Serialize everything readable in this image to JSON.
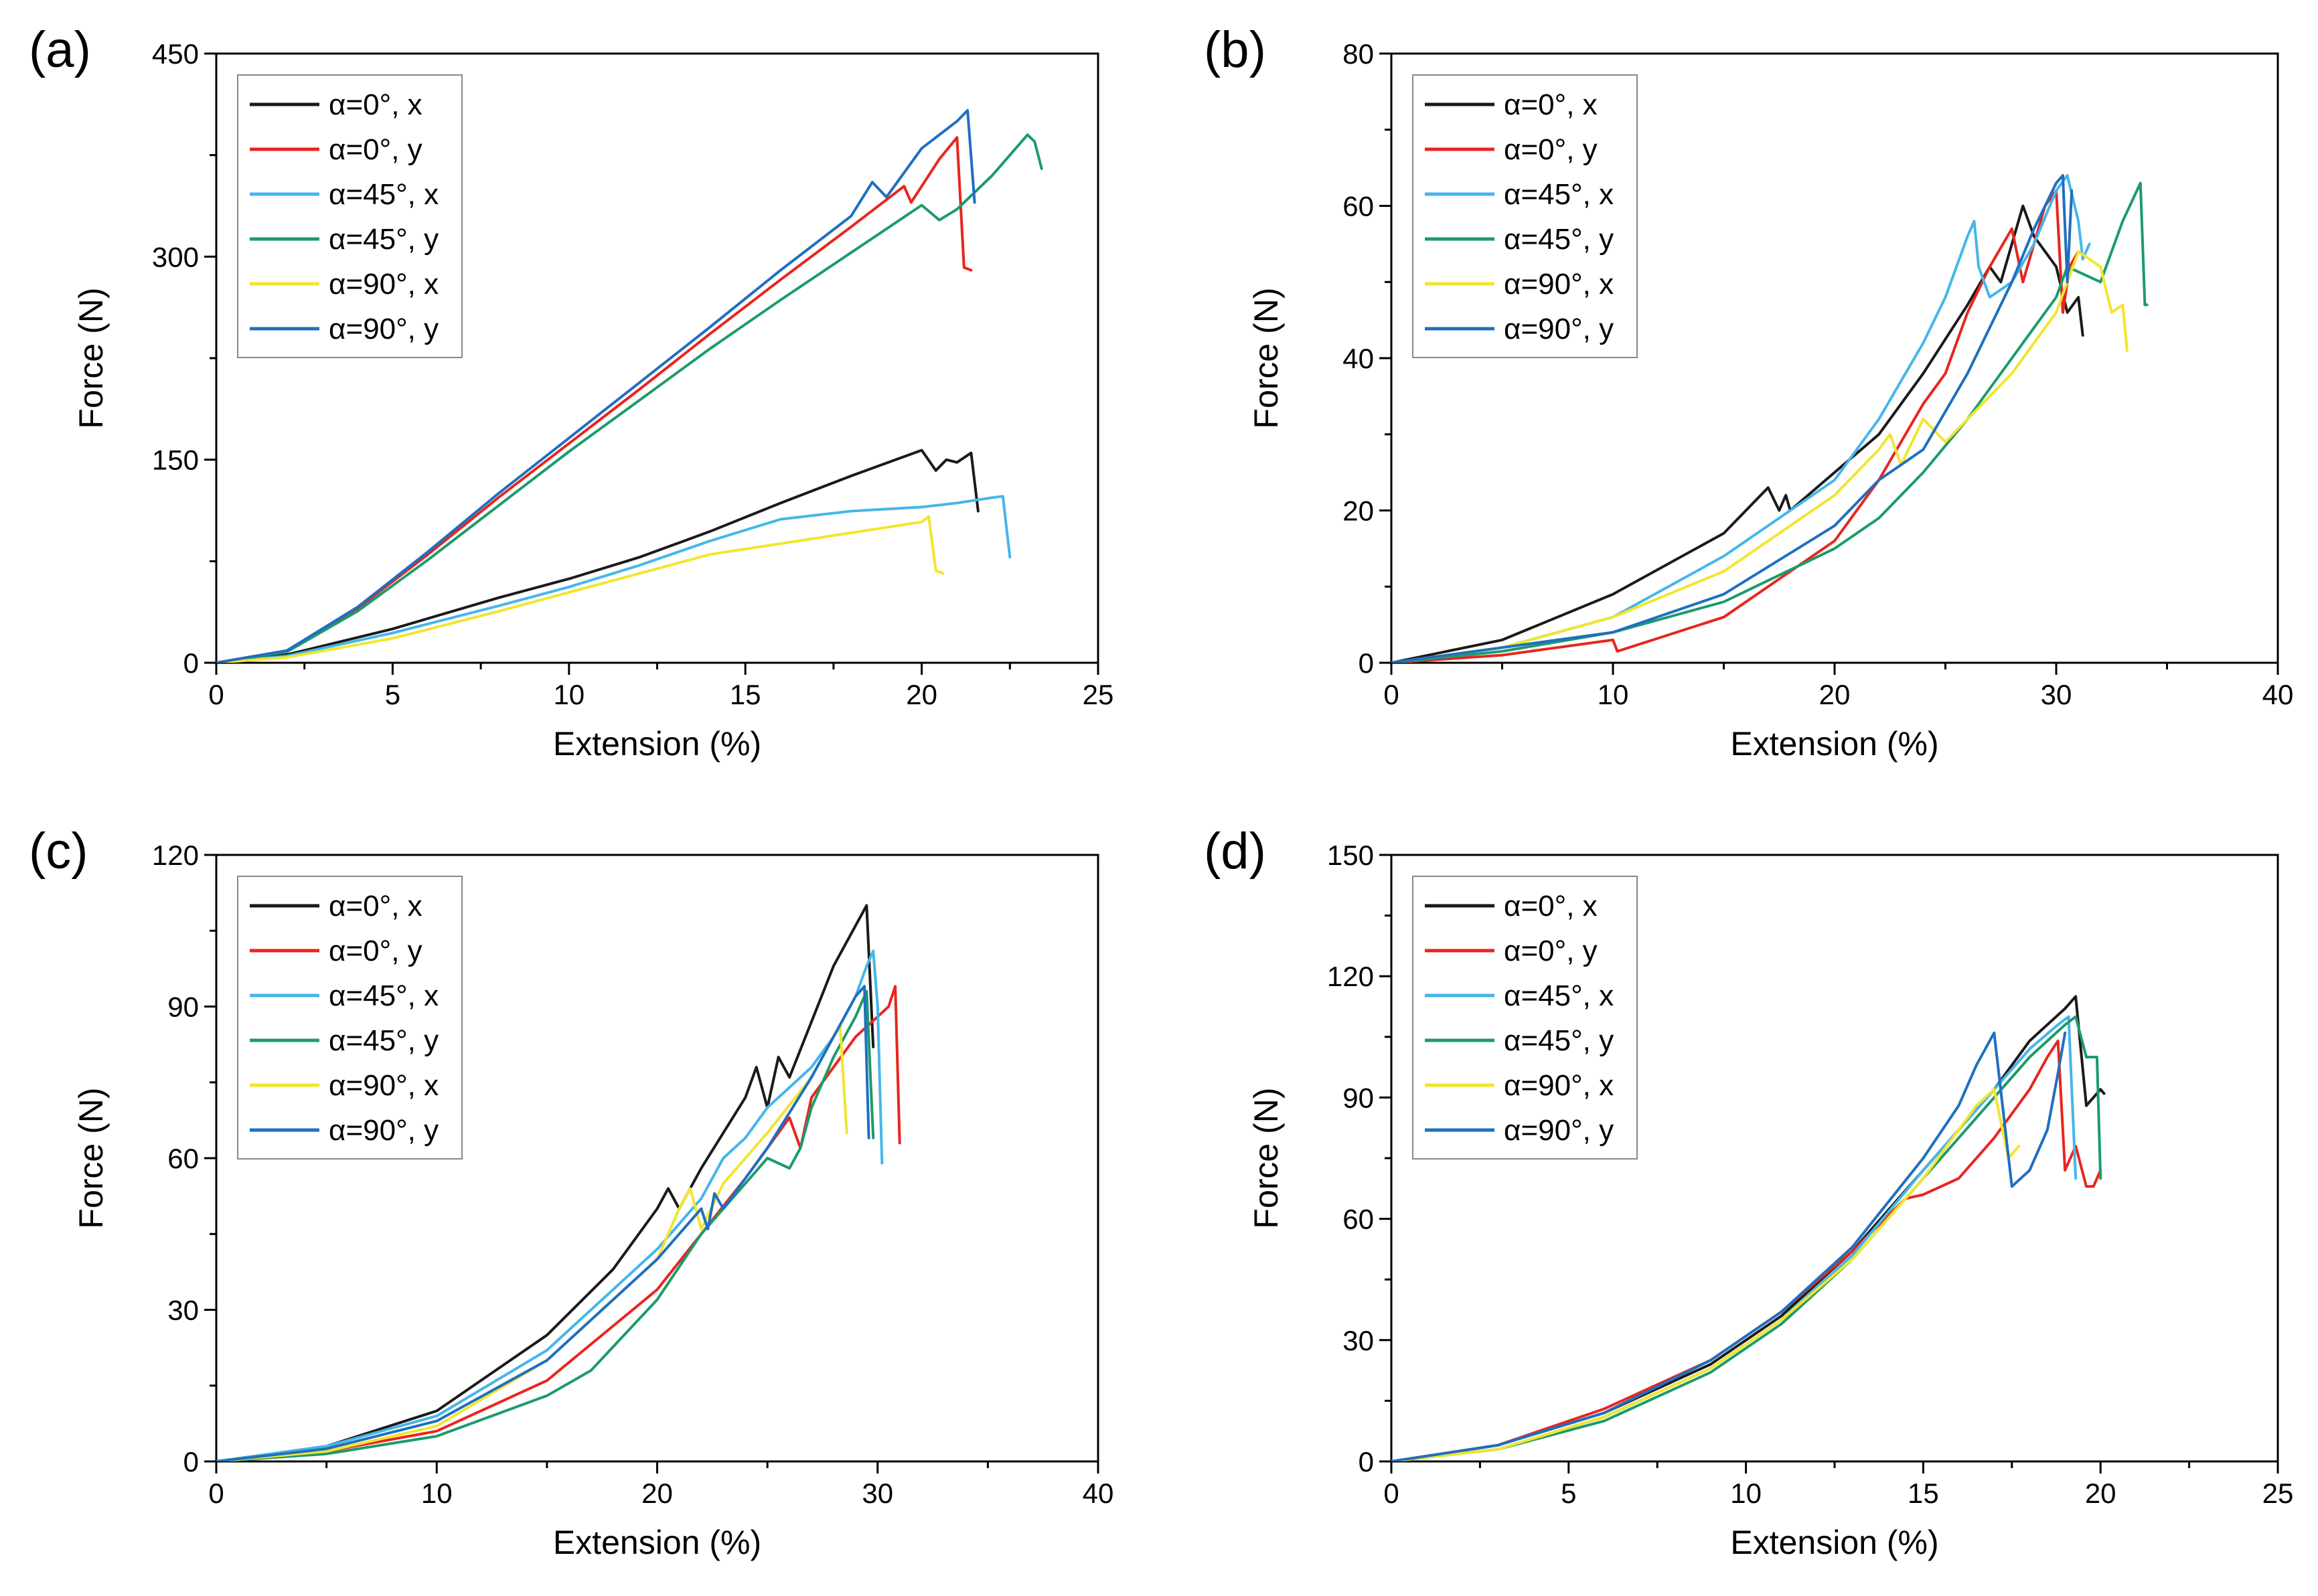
{
  "colors": {
    "series": [
      "#1a1a1a",
      "#e8251f",
      "#45b6ea",
      "#1c9b6a",
      "#f2e52e",
      "#1f6fc0"
    ]
  },
  "chart_data": [
    {
      "type": "line",
      "panel_label": "(a)",
      "xlabel": "Extension (%)",
      "ylabel": "Force (N)",
      "xlim": [
        0,
        25
      ],
      "ylim": [
        0,
        450
      ],
      "xticks": [
        0,
        5,
        10,
        15,
        20,
        25
      ],
      "yticks": [
        0,
        150,
        300,
        450
      ],
      "legend_position": "top-left",
      "grid": false,
      "series": [
        {
          "name": "α=0°, x",
          "x": [
            0,
            2,
            5,
            8,
            10,
            12,
            14,
            16,
            18,
            20,
            20.4,
            20.7,
            21,
            21.4,
            21.6
          ],
          "y": [
            0,
            6,
            25,
            48,
            62,
            78,
            97,
            118,
            138,
            157,
            142,
            150,
            148,
            155,
            112
          ]
        },
        {
          "name": "α=0°, y",
          "x": [
            0,
            2,
            4,
            6,
            8,
            10,
            12,
            14,
            16,
            18,
            19.5,
            19.7,
            20.5,
            21,
            21.2,
            21.4
          ],
          "y": [
            0,
            9,
            40,
            80,
            122,
            162,
            202,
            243,
            283,
            322,
            352,
            340,
            372,
            388,
            292,
            290
          ]
        },
        {
          "name": "α=45°, x",
          "x": [
            0,
            2,
            5,
            8,
            10,
            12,
            14,
            16,
            18,
            20,
            21,
            22,
            22.3,
            22.5
          ],
          "y": [
            0,
            5,
            22,
            42,
            56,
            72,
            90,
            106,
            112,
            115,
            118,
            122,
            123,
            78
          ]
        },
        {
          "name": "α=45°, y",
          "x": [
            0,
            2,
            4,
            6,
            8,
            10,
            12,
            14,
            16,
            18,
            20,
            20.5,
            21,
            22,
            23,
            23.2,
            23.4
          ],
          "y": [
            0,
            8,
            38,
            76,
            116,
            156,
            194,
            232,
            268,
            303,
            338,
            327,
            335,
            360,
            390,
            385,
            365
          ]
        },
        {
          "name": "α=90°, x",
          "x": [
            0,
            2,
            5,
            8,
            10,
            12,
            14,
            16,
            18,
            20,
            20.2,
            20.4,
            20.6
          ],
          "y": [
            0,
            4,
            18,
            38,
            52,
            66,
            80,
            88,
            96,
            104,
            108,
            68,
            66
          ]
        },
        {
          "name": "α=90°, y",
          "x": [
            0,
            2,
            4,
            6,
            8,
            10,
            12,
            14,
            16,
            18,
            18.6,
            19,
            20,
            21,
            21.3,
            21.5
          ],
          "y": [
            0,
            9,
            41,
            82,
            125,
            166,
            207,
            248,
            290,
            330,
            355,
            344,
            380,
            400,
            408,
            340
          ]
        }
      ]
    },
    {
      "type": "line",
      "panel_label": "(b)",
      "xlabel": "Extension (%)",
      "ylabel": "Force (N)",
      "xlim": [
        0,
        40
      ],
      "ylim": [
        0,
        80
      ],
      "xticks": [
        0,
        10,
        20,
        30,
        40
      ],
      "yticks": [
        0,
        20,
        40,
        60,
        80
      ],
      "legend_position": "top-left",
      "grid": false,
      "series": [
        {
          "name": "α=0°, x",
          "x": [
            0,
            5,
            10,
            15,
            17,
            17.5,
            17.8,
            18,
            20,
            22,
            24,
            26,
            27,
            27.5,
            28.5,
            29,
            30,
            30.5,
            31,
            31.2
          ],
          "y": [
            0,
            3,
            9,
            17,
            23,
            20,
            22,
            20,
            25,
            30,
            38,
            47,
            52,
            50,
            60,
            56,
            52,
            46,
            48,
            43
          ]
        },
        {
          "name": "α=0°, y",
          "x": [
            0,
            5,
            10,
            10.2,
            15,
            20,
            22,
            24,
            25,
            26,
            27,
            28,
            28.5,
            29.5,
            30,
            30.3,
            30.6,
            31
          ],
          "y": [
            0,
            1,
            3,
            1.5,
            6,
            16,
            24,
            34,
            38,
            46,
            52,
            57,
            50,
            60,
            62,
            46,
            52,
            54
          ]
        },
        {
          "name": "α=45°, x",
          "x": [
            0,
            5,
            10,
            15,
            20,
            22,
            24,
            25,
            26,
            26.3,
            26.5,
            27,
            28,
            29,
            30,
            30.5,
            31,
            31.2,
            31.5
          ],
          "y": [
            0,
            2,
            6,
            14,
            24,
            32,
            42,
            48,
            56,
            58,
            52,
            48,
            50,
            55,
            62,
            64,
            58,
            53,
            55
          ]
        },
        {
          "name": "α=45°, y",
          "x": [
            0,
            5,
            10,
            15,
            20,
            22,
            24,
            26,
            28,
            30,
            30.5,
            32,
            33,
            33.8,
            34,
            34.1
          ],
          "y": [
            0,
            1.5,
            4,
            8,
            15,
            19,
            25,
            32,
            40,
            48,
            52,
            50,
            58,
            63,
            47,
            47
          ]
        },
        {
          "name": "α=90°, x",
          "x": [
            0,
            5,
            10,
            15,
            20,
            22,
            22.5,
            23,
            24,
            25,
            28,
            30,
            31,
            32,
            32.5,
            33,
            33.2
          ],
          "y": [
            0,
            2,
            6,
            12,
            22,
            28,
            30,
            26,
            32,
            29,
            38,
            46,
            54,
            52,
            46,
            47,
            41
          ]
        },
        {
          "name": "α=90°, y",
          "x": [
            0,
            5,
            10,
            15,
            20,
            22,
            23,
            24,
            26,
            27,
            28,
            29,
            30,
            30.3,
            30.5,
            30.7
          ],
          "y": [
            0,
            2,
            4,
            9,
            18,
            24,
            26,
            28,
            38,
            44,
            50,
            57,
            63,
            64,
            50,
            62
          ]
        }
      ]
    },
    {
      "type": "line",
      "panel_label": "(c)",
      "xlabel": "Extension (%)",
      "ylabel": "Force (N)",
      "xlim": [
        0,
        40
      ],
      "ylim": [
        0,
        120
      ],
      "xticks": [
        0,
        10,
        20,
        30,
        40
      ],
      "yticks": [
        0,
        30,
        60,
        90,
        120
      ],
      "legend_position": "top-left",
      "grid": false,
      "series": [
        {
          "name": "α=0°, x",
          "x": [
            0,
            5,
            10,
            15,
            18,
            20,
            20.5,
            21,
            22,
            24,
            24.5,
            25,
            25.5,
            26,
            28,
            29,
            29.5,
            29.8
          ],
          "y": [
            0,
            3,
            10,
            25,
            38,
            50,
            54,
            50,
            58,
            72,
            78,
            70,
            80,
            76,
            98,
            106,
            110,
            82
          ]
        },
        {
          "name": "α=0°, y",
          "x": [
            0,
            5,
            10,
            15,
            20,
            22,
            24,
            25,
            26,
            26.5,
            27,
            28,
            29,
            30,
            30.5,
            30.8,
            31
          ],
          "y": [
            0,
            2,
            6,
            16,
            34,
            45,
            56,
            62,
            68,
            62,
            72,
            78,
            84,
            88,
            90,
            94,
            63
          ]
        },
        {
          "name": "α=45°, x",
          "x": [
            0,
            5,
            10,
            15,
            20,
            22,
            23,
            24,
            25,
            26,
            27,
            28,
            29,
            29.5,
            29.8,
            30,
            30.2
          ],
          "y": [
            0,
            3,
            9,
            22,
            42,
            52,
            60,
            64,
            70,
            74,
            78,
            84,
            92,
            98,
            101,
            90,
            59
          ]
        },
        {
          "name": "α=45°, y",
          "x": [
            0,
            5,
            10,
            15,
            17,
            20,
            22,
            24,
            25,
            26,
            26.5,
            27,
            28,
            29,
            29.5,
            29.8
          ],
          "y": [
            0,
            1.5,
            5,
            13,
            18,
            32,
            45,
            55,
            60,
            58,
            62,
            70,
            80,
            88,
            93,
            64
          ]
        },
        {
          "name": "α=90°, x",
          "x": [
            0,
            5,
            10,
            15,
            20,
            21,
            21.5,
            22,
            23,
            25,
            27,
            28,
            28.3,
            28.6
          ],
          "y": [
            0,
            2,
            7,
            20,
            40,
            50,
            54,
            46,
            55,
            65,
            76,
            84,
            86,
            65
          ]
        },
        {
          "name": "α=90°, y",
          "x": [
            0,
            5,
            10,
            15,
            20,
            22,
            22.3,
            22.6,
            23,
            25,
            27,
            28,
            29,
            29.4,
            29.6
          ],
          "y": [
            0,
            2.5,
            8,
            20,
            40,
            50,
            46,
            53,
            50,
            62,
            76,
            84,
            92,
            94,
            64
          ]
        }
      ]
    },
    {
      "type": "line",
      "panel_label": "(d)",
      "xlabel": "Extension (%)",
      "ylabel": "Force (N)",
      "xlim": [
        0,
        25
      ],
      "ylim": [
        0,
        150
      ],
      "xticks": [
        0,
        5,
        10,
        15,
        20,
        25
      ],
      "yticks": [
        0,
        30,
        60,
        90,
        120,
        150
      ],
      "legend_position": "top-left",
      "grid": false,
      "series": [
        {
          "name": "α=0°, x",
          "x": [
            0,
            3,
            6,
            9,
            11,
            13,
            15,
            17,
            18,
            19,
            19.3,
            19.6,
            20,
            20.1
          ],
          "y": [
            0,
            4,
            12,
            24,
            36,
            52,
            72,
            92,
            104,
            112,
            115,
            88,
            92,
            91
          ]
        },
        {
          "name": "α=0°, y",
          "x": [
            0,
            3,
            6,
            9,
            11,
            13,
            14.5,
            15,
            16,
            17,
            18,
            18.5,
            18.8,
            19,
            19.3,
            19.6,
            19.8,
            20
          ],
          "y": [
            0,
            4,
            13,
            25,
            37,
            52,
            65,
            66,
            70,
            80,
            92,
            100,
            104,
            72,
            78,
            68,
            68,
            72
          ]
        },
        {
          "name": "α=45°, x",
          "x": [
            0,
            3,
            6,
            9,
            11,
            13,
            15,
            17,
            18,
            18.8,
            19.1,
            19.3
          ],
          "y": [
            0,
            3,
            11,
            23,
            35,
            51,
            72,
            92,
            102,
            108,
            110,
            70
          ]
        },
        {
          "name": "α=45°, y",
          "x": [
            0,
            3,
            6,
            9,
            11,
            13,
            15,
            17,
            18,
            19,
            19.3,
            19.6,
            19.9,
            20
          ],
          "y": [
            0,
            3,
            10,
            22,
            34,
            50,
            70,
            90,
            100,
            108,
            110,
            100,
            100,
            70
          ]
        },
        {
          "name": "α=90°, x",
          "x": [
            0,
            3,
            6,
            9,
            11,
            13,
            15,
            16.5,
            17,
            17.4,
            17.7
          ],
          "y": [
            0,
            3,
            11,
            23,
            35,
            50,
            70,
            88,
            92,
            75,
            78
          ]
        },
        {
          "name": "α=90°, y",
          "x": [
            0,
            3,
            6,
            9,
            11,
            13,
            15,
            16,
            16.5,
            17,
            17.5,
            18,
            18.5,
            18.8,
            19
          ],
          "y": [
            0,
            4,
            12,
            25,
            37,
            53,
            75,
            88,
            98,
            106,
            68,
            72,
            82,
            96,
            106
          ]
        }
      ]
    }
  ]
}
